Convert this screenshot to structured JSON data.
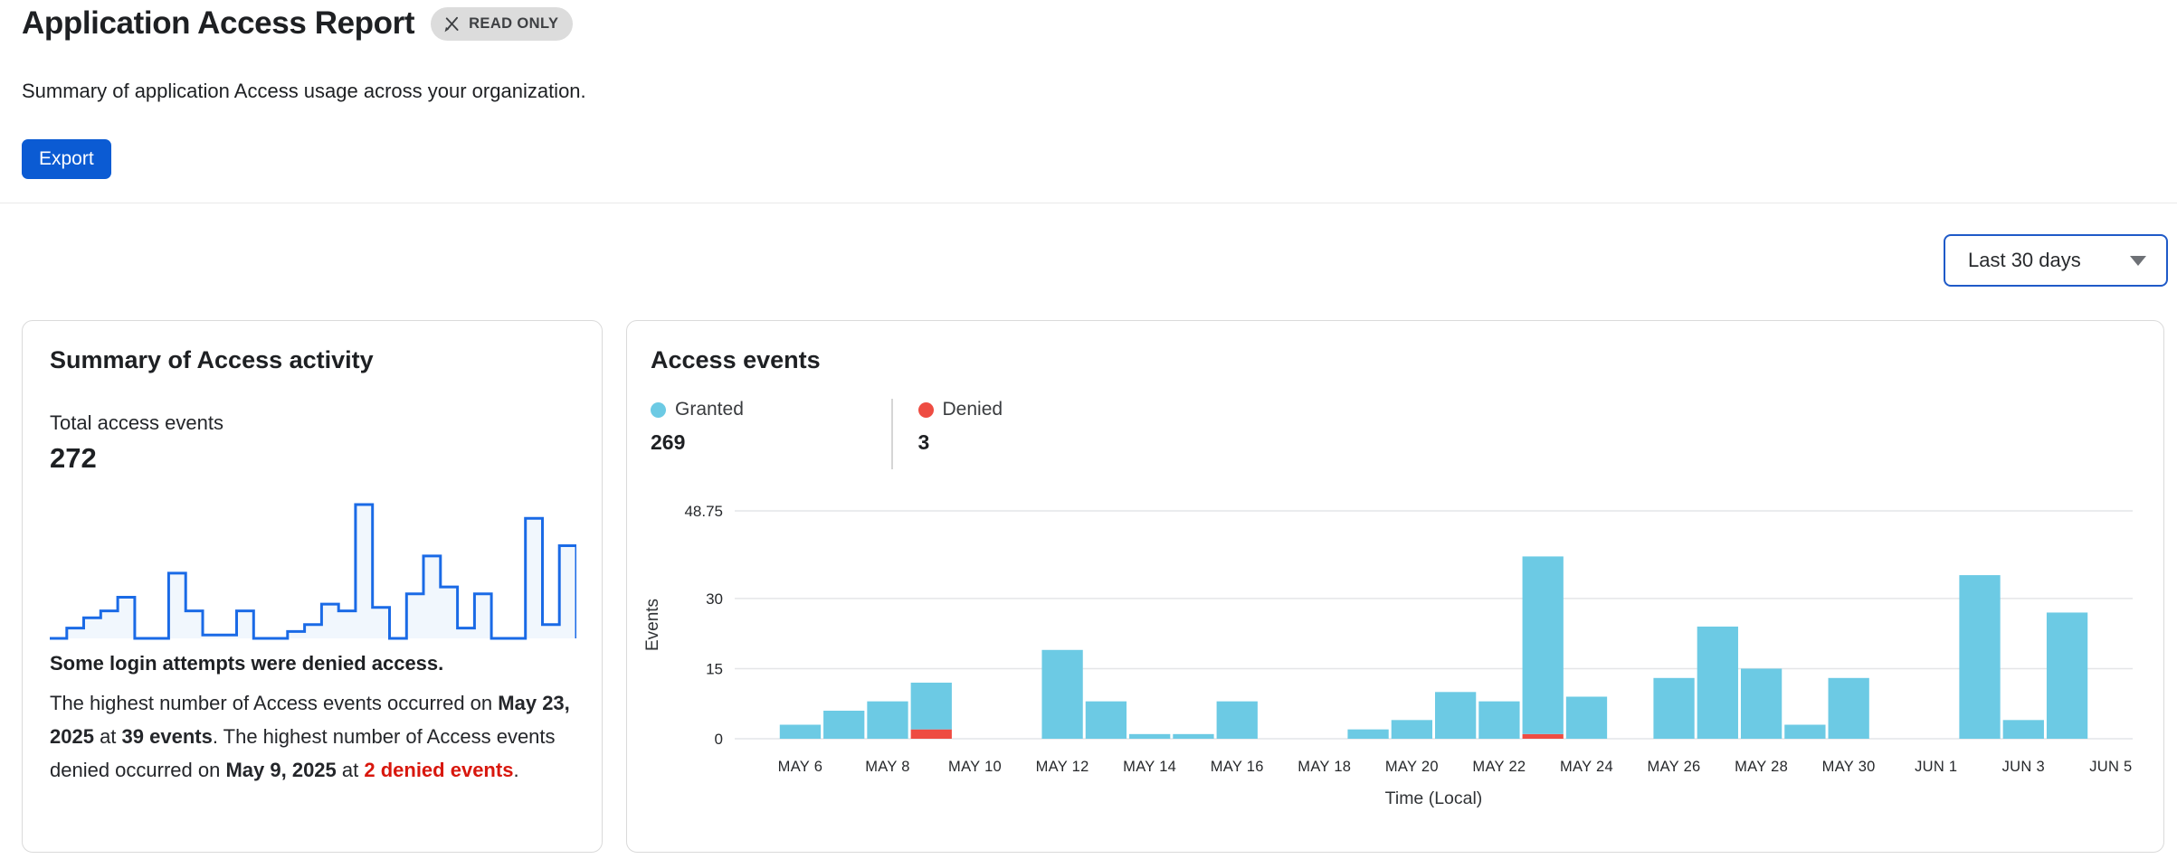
{
  "header": {
    "title": "Application Access Report",
    "badge": "READ ONLY",
    "subtitle": "Summary of application Access usage across your organization.",
    "export_label": "Export"
  },
  "filters": {
    "time_range": "Last 30 days"
  },
  "summary_card": {
    "title": "Summary of Access activity",
    "total_label": "Total access events",
    "total_value": "272",
    "highlight": "Some login attempts were denied access.",
    "description_segments": [
      {
        "text": "The highest number of Access events occurred on ",
        "style": "normal"
      },
      {
        "text": "May 23, 2025",
        "style": "bold"
      },
      {
        "text": " at ",
        "style": "normal"
      },
      {
        "text": "39 events",
        "style": "bold"
      },
      {
        "text": ". The highest number of Access events denied occurred on ",
        "style": "normal"
      },
      {
        "text": "May 9, 2025",
        "style": "bold"
      },
      {
        "text": " at ",
        "style": "normal"
      },
      {
        "text": "2 denied events",
        "style": "bold-red"
      },
      {
        "text": ".",
        "style": "normal"
      }
    ]
  },
  "events_card": {
    "title": "Access events"
  },
  "colors": {
    "granted": "#6ccae4",
    "denied": "#ee4c42",
    "spark_stroke": "#1a6ae6",
    "spark_fill": "#f1f7fd",
    "grid": "#e4e6e8",
    "axis_text": "#26282b"
  },
  "chart_data": [
    {
      "type": "area",
      "name": "access-activity-sparkline",
      "x_range": "MAY 5 - JUN 4",
      "values": [
        0,
        3,
        6,
        8,
        12,
        0,
        0,
        19,
        8,
        1,
        1,
        8,
        0,
        0,
        2,
        4,
        10,
        8,
        39,
        9,
        0,
        13,
        24,
        15,
        3,
        13,
        0,
        0,
        35,
        4,
        27
      ],
      "ylim": [
        0,
        39
      ],
      "grid": false
    },
    {
      "type": "bar",
      "name": "access-events-by-day",
      "stacked": true,
      "categories": [
        "MAY 5",
        "MAY 6",
        "MAY 7",
        "MAY 8",
        "MAY 9",
        "MAY 10",
        "MAY 11",
        "MAY 12",
        "MAY 13",
        "MAY 14",
        "MAY 15",
        "MAY 16",
        "MAY 17",
        "MAY 18",
        "MAY 19",
        "MAY 20",
        "MAY 21",
        "MAY 22",
        "MAY 23",
        "MAY 24",
        "MAY 25",
        "MAY 26",
        "MAY 27",
        "MAY 28",
        "MAY 29",
        "MAY 30",
        "MAY 31",
        "JUN 1",
        "JUN 2",
        "JUN 3",
        "JUN 4",
        "JUN 5"
      ],
      "series": [
        {
          "name": "Granted",
          "total": 269,
          "color": "#6ccae4",
          "values": [
            0,
            3,
            6,
            8,
            10,
            0,
            0,
            19,
            8,
            1,
            1,
            8,
            0,
            0,
            2,
            4,
            10,
            8,
            38,
            9,
            0,
            13,
            24,
            15,
            3,
            13,
            0,
            0,
            35,
            4,
            27,
            0
          ]
        },
        {
          "name": "Denied",
          "total": 3,
          "color": "#ee4c42",
          "values": [
            0,
            0,
            0,
            0,
            2,
            0,
            0,
            0,
            0,
            0,
            0,
            0,
            0,
            0,
            0,
            0,
            0,
            0,
            1,
            0,
            0,
            0,
            0,
            0,
            0,
            0,
            0,
            0,
            0,
            0,
            0,
            0
          ]
        }
      ],
      "xlabel": "Time (Local)",
      "ylabel": "Events",
      "ylim": [
        0,
        48.75
      ],
      "yticks": [
        0,
        15,
        30,
        48.75
      ],
      "ytick_labels": [
        "0",
        "15",
        "30",
        "48.75"
      ],
      "xticks_start": 1,
      "xticks_every": 2,
      "grid": true,
      "legend_position": "top"
    }
  ]
}
